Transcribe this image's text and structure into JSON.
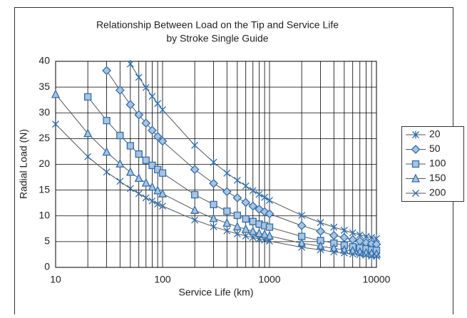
{
  "chart_data": {
    "type": "line",
    "title": [
      "Relationship Between Load on the Tip and Service Life",
      "by Stroke Single Guide"
    ],
    "x_label": "Service Life (km)",
    "y_label": "Radial Load (N)",
    "x": [
      10,
      20,
      30,
      40,
      50,
      60,
      70,
      80,
      90,
      100,
      200,
      300,
      400,
      500,
      600,
      700,
      800,
      900,
      1000,
      2000,
      3000,
      4000,
      5000,
      6000,
      7000,
      8000,
      9000,
      10000
    ],
    "xscale": "log",
    "xlim": [
      10,
      10000
    ],
    "xticks": [
      10,
      100,
      1000,
      10000
    ],
    "ylim": [
      0,
      40
    ],
    "yticks": [
      0,
      5,
      10,
      15,
      20,
      25,
      30,
      35,
      40
    ],
    "grid": true,
    "line_color": "#555555",
    "legend_position": "right",
    "series": [
      {
        "name": "20",
        "color": "#2f6ead",
        "marker": "asterisk",
        "values": [
          null,
          null,
          null,
          null,
          39.5,
          36.9,
          34.9,
          33.2,
          31.8,
          30.6,
          23.7,
          20.4,
          18.3,
          16.9,
          15.8,
          14.9,
          14.2,
          13.6,
          13.0,
          10.1,
          8.7,
          7.8,
          7.2,
          6.7,
          6.3,
          6.0,
          5.8,
          5.6
        ]
      },
      {
        "name": "50",
        "color": "#2f6ead",
        "marker": "diamond",
        "values": [
          null,
          null,
          38.2,
          34.4,
          31.6,
          29.6,
          28.0,
          26.6,
          25.4,
          24.5,
          19.0,
          16.3,
          14.7,
          13.5,
          12.6,
          11.9,
          11.3,
          10.8,
          10.4,
          8.1,
          7.0,
          6.2,
          5.8,
          5.4,
          5.1,
          4.8,
          4.6,
          4.5
        ]
      },
      {
        "name": "100",
        "color": "#2f6ead",
        "marker": "square",
        "values": [
          null,
          33.1,
          28.5,
          25.6,
          23.6,
          22.0,
          20.8,
          19.8,
          19.0,
          18.3,
          14.1,
          12.2,
          10.9,
          10.1,
          9.4,
          8.9,
          8.4,
          8.1,
          7.8,
          6.0,
          5.2,
          4.7,
          4.3,
          4.0,
          3.8,
          3.6,
          3.4,
          3.3
        ]
      },
      {
        "name": "150",
        "color": "#2f6ead",
        "marker": "triangle",
        "values": [
          33.6,
          26.0,
          22.4,
          20.1,
          18.5,
          17.3,
          16.4,
          15.6,
          14.9,
          14.3,
          11.1,
          9.5,
          8.6,
          7.9,
          7.4,
          7.0,
          6.6,
          6.4,
          6.1,
          4.7,
          4.1,
          3.7,
          3.4,
          3.2,
          3.0,
          2.8,
          2.7,
          2.6
        ]
      },
      {
        "name": "200",
        "color": "#2f6ead",
        "marker": "x",
        "values": [
          27.8,
          21.5,
          18.5,
          16.7,
          15.3,
          14.3,
          13.5,
          12.9,
          12.3,
          11.9,
          9.2,
          7.9,
          7.1,
          6.5,
          6.1,
          5.8,
          5.5,
          5.3,
          5.1,
          3.9,
          3.4,
          3.0,
          2.8,
          2.6,
          2.5,
          2.4,
          2.2,
          2.2
        ]
      }
    ]
  }
}
